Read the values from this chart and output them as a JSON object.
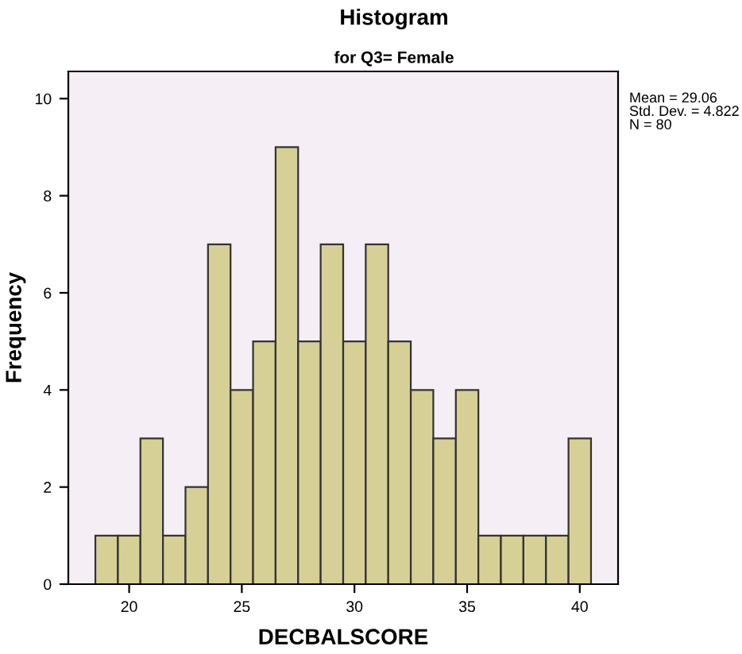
{
  "chart_data": {
    "type": "histogram",
    "title": "Histogram",
    "subtitle": "for Q3= Female",
    "xlabel": "DECBALSCORE",
    "ylabel": "Frequency",
    "bins": [
      18.5,
      19.5,
      20.5,
      21.5,
      22.5,
      23.5,
      24.5,
      25.5,
      26.5,
      27.5,
      28.5,
      29.5,
      30.5,
      31.5,
      32.5,
      33.5,
      34.5,
      35.5,
      36.5,
      37.5,
      38.5,
      39.5,
      40.5
    ],
    "values": [
      1,
      1,
      3,
      1,
      2,
      7,
      4,
      5,
      9,
      5,
      7,
      5,
      7,
      5,
      4,
      3,
      4,
      1,
      1,
      1,
      1,
      3
    ],
    "color": "#d6cf96",
    "xlim": [
      17.3,
      41.7
    ],
    "xticks": [
      20,
      25,
      30,
      35,
      40
    ],
    "ylim": [
      0,
      10.56
    ],
    "yticks": [
      0,
      2,
      4,
      6,
      8,
      10
    ],
    "annotations": [
      "Mean = 29.06\nStd. Dev. = 4.822\nN = 80"
    ],
    "grid": false,
    "legend": false
  }
}
